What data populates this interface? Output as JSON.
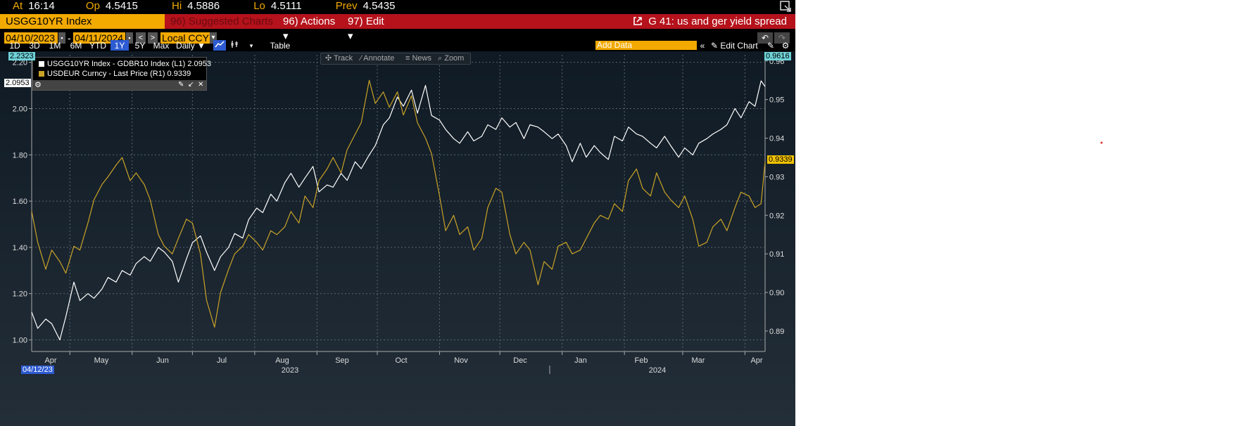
{
  "quote": {
    "at_label": "At",
    "at_value": "16:14",
    "open_label": "Op",
    "open_value": "4.5415",
    "high_label": "Hi",
    "high_value": "4.5886",
    "low_label": "Lo",
    "low_value": "4.5111",
    "prev_label": "Prev",
    "prev_value": "4.5435"
  },
  "toolbar": {
    "ticker": "USGG10YR Index",
    "suggested": "96) Suggested Charts ▾",
    "actions": "96) Actions ▾",
    "edit": "97) Edit ▾",
    "chart_title": "G 41: us and ger yield spread"
  },
  "date_range": {
    "start": "04/10/2023",
    "sep": "-",
    "end": "04/11/2024",
    "currency": "Local CCY"
  },
  "ranges": [
    "1D",
    "3D",
    "1M",
    "6M",
    "YTD",
    "1Y",
    "5Y",
    "Max"
  ],
  "active_range": "1Y",
  "frequency": "Daily ▼",
  "table_label": "Table",
  "add_data_placeholder": "Add Data",
  "edit_chart_label": "Edit Chart",
  "tools": {
    "track": "Track",
    "annotate": "Annotate",
    "news": "News",
    "zoom": "Zoom"
  },
  "badges": {
    "left_top": "2.2323",
    "left_last": "2.0953",
    "right_top": "0.9616",
    "right_last": "0.9339",
    "start_date": "04/12/23"
  },
  "icons": [
    "expand-icon",
    "undo-icon",
    "redo-icon",
    "calendar-icon",
    "chevron-left-icon",
    "chevron-right-icon",
    "line-chart-icon",
    "candlestick-icon",
    "pencil-icon",
    "gear-icon",
    "pin-icon",
    "collapse-icon",
    "close-icon"
  ],
  "colors": {
    "accent": "#f2a900",
    "bar": "#b5121b",
    "series1": "#ffffff",
    "series2": "#c9a227",
    "active": "#2d5bd1"
  },
  "chart_data": {
    "type": "line",
    "xlabel": "",
    "ylabel": "",
    "x_start": "2023-04-12",
    "x_end": "2024-04-11",
    "x_ticks": [
      "Apr",
      "May",
      "Jun",
      "Jul",
      "Aug",
      "Sep",
      "Oct",
      "Nov",
      "Dec",
      "Jan",
      "Feb",
      "Mar",
      "Apr"
    ],
    "year_labels": [
      "2023",
      "2024"
    ],
    "left_axis": {
      "ylim": [
        0.95,
        2.2323
      ],
      "ticks": [
        "1.00",
        "1.20",
        "1.40",
        "1.60",
        "1.80",
        "2.00",
        "2.20"
      ]
    },
    "right_axis": {
      "ylim": [
        0.8847,
        0.9616
      ],
      "ticks": [
        "0.89",
        "0.90",
        "0.91",
        "0.92",
        "0.93",
        "0.94",
        "0.95",
        "0.96"
      ]
    },
    "grid": true,
    "legend_placement": "top-left",
    "series": [
      {
        "name": "USGG10YR Index - GDBR10 Index (L1)",
        "last": "2.0953",
        "axis": "left",
        "x": [
          "2023-04-12",
          "2023-04-15",
          "2023-04-19",
          "2023-04-22",
          "2023-04-26",
          "2023-04-29",
          "2023-05-03",
          "2023-05-06",
          "2023-05-10",
          "2023-05-13",
          "2023-05-17",
          "2023-05-20",
          "2023-05-24",
          "2023-05-27",
          "2023-05-31",
          "2023-06-03",
          "2023-06-07",
          "2023-06-10",
          "2023-06-14",
          "2023-06-17",
          "2023-06-21",
          "2023-06-24",
          "2023-06-28",
          "2023-07-01",
          "2023-07-05",
          "2023-07-08",
          "2023-07-12",
          "2023-07-15",
          "2023-07-19",
          "2023-07-22",
          "2023-07-26",
          "2023-07-29",
          "2023-08-02",
          "2023-08-05",
          "2023-08-09",
          "2023-08-12",
          "2023-08-16",
          "2023-08-19",
          "2023-08-23",
          "2023-08-26",
          "2023-08-30",
          "2023-09-02",
          "2023-09-06",
          "2023-09-09",
          "2023-09-13",
          "2023-09-16",
          "2023-09-20",
          "2023-09-23",
          "2023-09-27",
          "2023-09-30",
          "2023-10-04",
          "2023-10-07",
          "2023-10-11",
          "2023-10-14",
          "2023-10-18",
          "2023-10-21",
          "2023-10-25",
          "2023-10-28",
          "2023-11-01",
          "2023-11-04",
          "2023-11-08",
          "2023-11-11",
          "2023-11-15",
          "2023-11-18",
          "2023-11-22",
          "2023-11-25",
          "2023-11-29",
          "2023-12-02",
          "2023-12-06",
          "2023-12-09",
          "2023-12-13",
          "2023-12-16",
          "2023-12-20",
          "2023-12-23",
          "2023-12-27",
          "2023-12-30",
          "2024-01-03",
          "2024-01-06",
          "2024-01-10",
          "2024-01-13",
          "2024-01-17",
          "2024-01-20",
          "2024-01-24",
          "2024-01-27",
          "2024-01-31",
          "2024-02-03",
          "2024-02-07",
          "2024-02-10",
          "2024-02-14",
          "2024-02-17",
          "2024-02-21",
          "2024-02-24",
          "2024-02-28",
          "2024-03-02",
          "2024-03-06",
          "2024-03-09",
          "2024-03-13",
          "2024-03-16",
          "2024-03-20",
          "2024-03-23",
          "2024-03-27",
          "2024-03-30",
          "2024-04-03",
          "2024-04-06",
          "2024-04-09",
          "2024-04-11"
        ],
        "values": [
          1.12,
          1.05,
          1.09,
          1.07,
          1.0,
          1.1,
          1.25,
          1.17,
          1.2,
          1.18,
          1.22,
          1.27,
          1.25,
          1.3,
          1.28,
          1.33,
          1.36,
          1.34,
          1.4,
          1.38,
          1.34,
          1.25,
          1.35,
          1.42,
          1.45,
          1.38,
          1.3,
          1.36,
          1.4,
          1.46,
          1.44,
          1.52,
          1.57,
          1.55,
          1.63,
          1.6,
          1.68,
          1.72,
          1.66,
          1.7,
          1.75,
          1.64,
          1.67,
          1.66,
          1.72,
          1.69,
          1.77,
          1.74,
          1.8,
          1.84,
          1.93,
          1.96,
          2.05,
          2.01,
          2.08,
          1.98,
          2.1,
          1.97,
          1.95,
          1.91,
          1.87,
          1.85,
          1.9,
          1.86,
          1.88,
          1.93,
          1.91,
          1.96,
          1.92,
          1.94,
          1.87,
          1.93,
          1.92,
          1.9,
          1.87,
          1.89,
          1.84,
          1.77,
          1.85,
          1.79,
          1.84,
          1.81,
          1.78,
          1.88,
          1.86,
          1.92,
          1.89,
          1.88,
          1.85,
          1.83,
          1.88,
          1.84,
          1.79,
          1.83,
          1.8,
          1.85,
          1.87,
          1.89,
          1.91,
          1.93,
          2.0,
          1.96,
          2.03,
          2.01,
          2.12,
          2.0953
        ]
      },
      {
        "name": "USDEUR Curncy - Last Price (R1)",
        "last": "0.9339",
        "axis": "right",
        "x": [
          "2023-04-12",
          "2023-04-15",
          "2023-04-19",
          "2023-04-22",
          "2023-04-26",
          "2023-04-29",
          "2023-05-03",
          "2023-05-06",
          "2023-05-10",
          "2023-05-13",
          "2023-05-17",
          "2023-05-20",
          "2023-05-24",
          "2023-05-27",
          "2023-05-31",
          "2023-06-03",
          "2023-06-07",
          "2023-06-10",
          "2023-06-14",
          "2023-06-17",
          "2023-06-21",
          "2023-06-24",
          "2023-06-28",
          "2023-07-01",
          "2023-07-05",
          "2023-07-08",
          "2023-07-12",
          "2023-07-15",
          "2023-07-19",
          "2023-07-22",
          "2023-07-26",
          "2023-07-29",
          "2023-08-02",
          "2023-08-05",
          "2023-08-09",
          "2023-08-12",
          "2023-08-16",
          "2023-08-19",
          "2023-08-23",
          "2023-08-26",
          "2023-08-30",
          "2023-09-02",
          "2023-09-06",
          "2023-09-09",
          "2023-09-13",
          "2023-09-16",
          "2023-09-20",
          "2023-09-23",
          "2023-09-27",
          "2023-09-30",
          "2023-10-04",
          "2023-10-07",
          "2023-10-11",
          "2023-10-14",
          "2023-10-18",
          "2023-10-21",
          "2023-10-25",
          "2023-10-28",
          "2023-11-01",
          "2023-11-04",
          "2023-11-08",
          "2023-11-11",
          "2023-11-15",
          "2023-11-18",
          "2023-11-22",
          "2023-11-25",
          "2023-11-29",
          "2023-12-02",
          "2023-12-06",
          "2023-12-09",
          "2023-12-13",
          "2023-12-16",
          "2023-12-20",
          "2023-12-23",
          "2023-12-27",
          "2023-12-30",
          "2024-01-03",
          "2024-01-06",
          "2024-01-10",
          "2024-01-13",
          "2024-01-17",
          "2024-01-20",
          "2024-01-24",
          "2024-01-27",
          "2024-01-31",
          "2024-02-03",
          "2024-02-07",
          "2024-02-10",
          "2024-02-14",
          "2024-02-17",
          "2024-02-21",
          "2024-02-24",
          "2024-02-28",
          "2024-03-02",
          "2024-03-06",
          "2024-03-09",
          "2024-03-13",
          "2024-03-16",
          "2024-03-20",
          "2024-03-23",
          "2024-03-27",
          "2024-03-30",
          "2024-04-03",
          "2024-04-06",
          "2024-04-09",
          "2024-04-11"
        ],
        "values": [
          0.921,
          0.913,
          0.906,
          0.911,
          0.908,
          0.905,
          0.912,
          0.911,
          0.918,
          0.924,
          0.928,
          0.93,
          0.933,
          0.935,
          0.929,
          0.931,
          0.928,
          0.924,
          0.915,
          0.912,
          0.91,
          0.914,
          0.919,
          0.918,
          0.91,
          0.898,
          0.891,
          0.9,
          0.906,
          0.91,
          0.912,
          0.915,
          0.913,
          0.911,
          0.916,
          0.915,
          0.917,
          0.921,
          0.918,
          0.925,
          0.922,
          0.929,
          0.932,
          0.935,
          0.931,
          0.937,
          0.941,
          0.944,
          0.955,
          0.949,
          0.952,
          0.948,
          0.952,
          0.946,
          0.951,
          0.944,
          0.94,
          0.936,
          0.925,
          0.916,
          0.92,
          0.915,
          0.917,
          0.911,
          0.914,
          0.922,
          0.927,
          0.926,
          0.915,
          0.91,
          0.913,
          0.911,
          0.902,
          0.908,
          0.906,
          0.912,
          0.913,
          0.91,
          0.911,
          0.914,
          0.918,
          0.92,
          0.919,
          0.923,
          0.921,
          0.929,
          0.932,
          0.927,
          0.925,
          0.931,
          0.926,
          0.924,
          0.922,
          0.925,
          0.919,
          0.912,
          0.913,
          0.917,
          0.919,
          0.916,
          0.922,
          0.926,
          0.925,
          0.922,
          0.923,
          0.9339
        ]
      }
    ]
  }
}
